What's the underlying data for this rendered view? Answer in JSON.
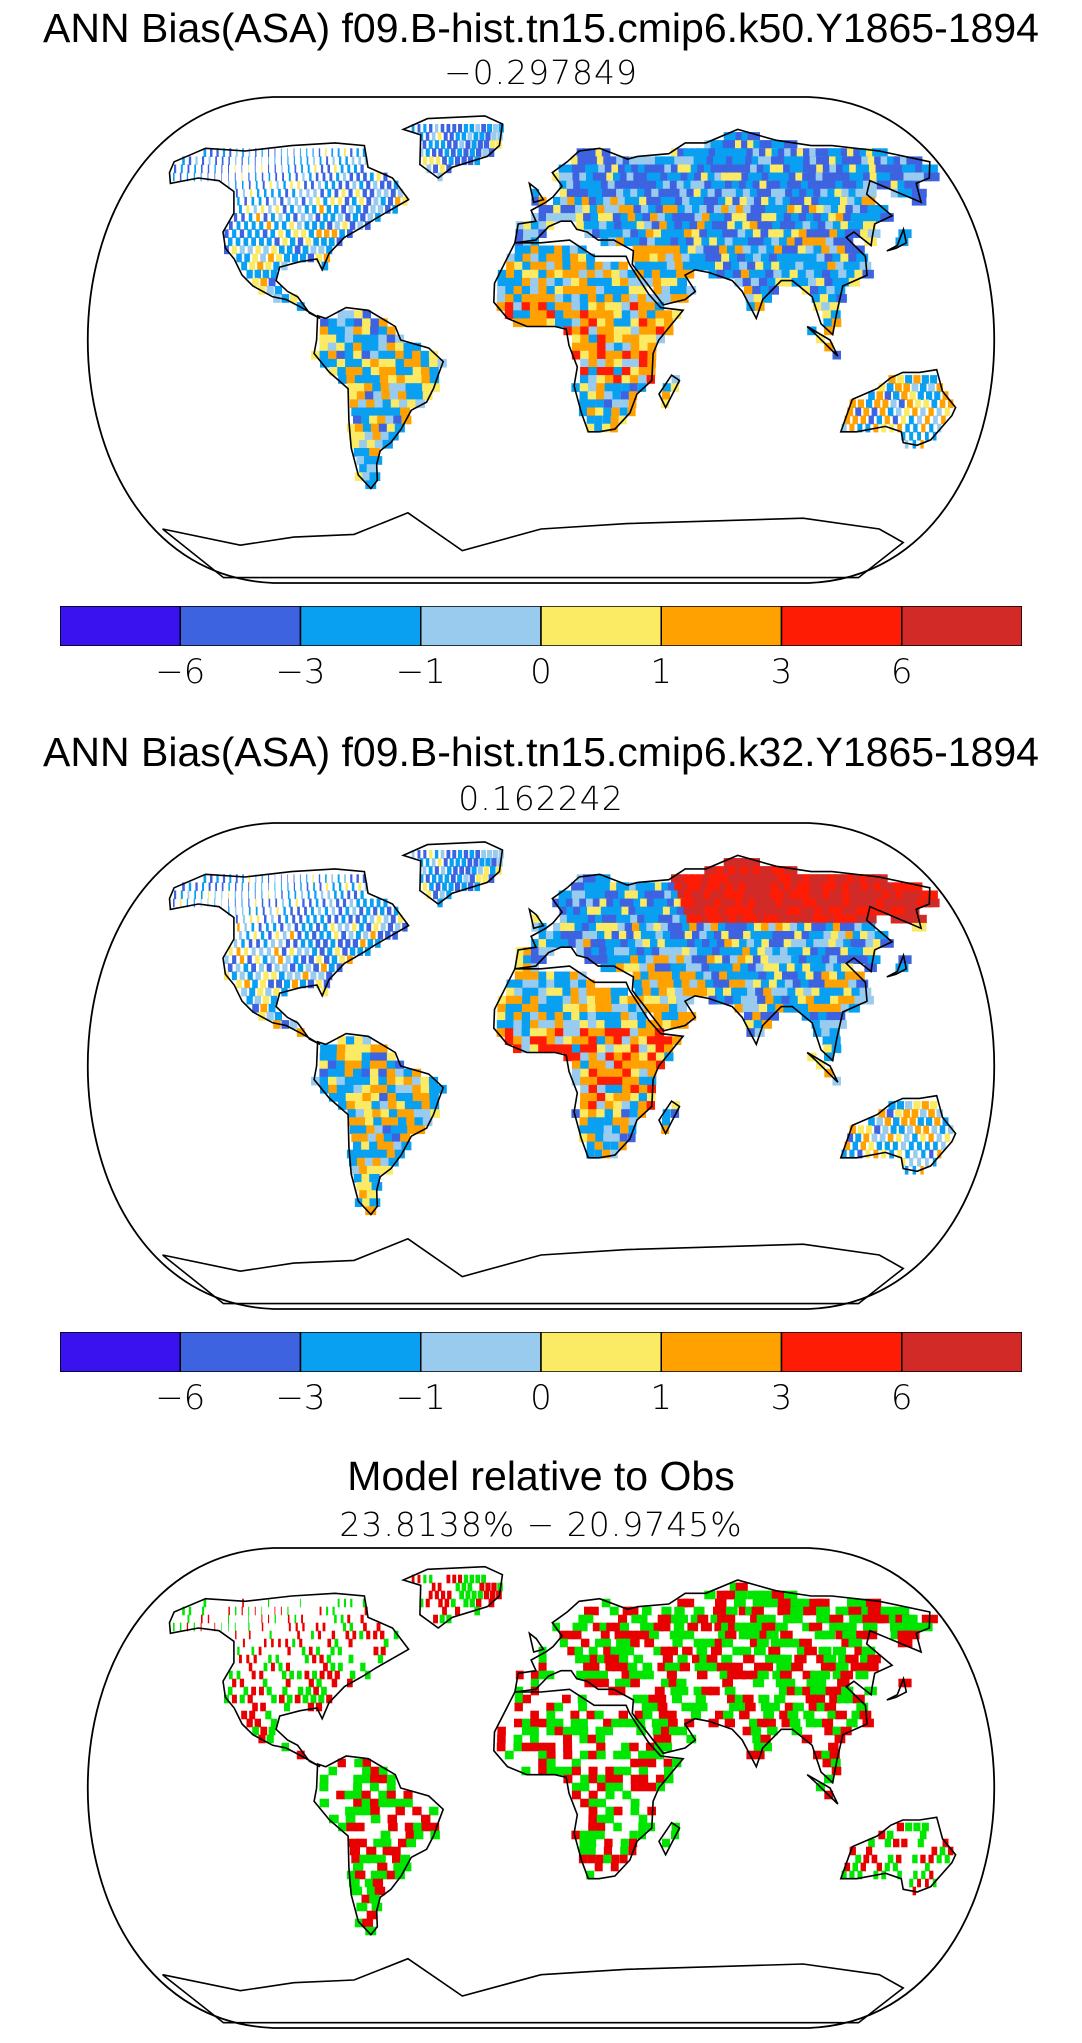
{
  "panels": [
    {
      "title": "ANN Bias(ASA) f09.B-hist.tn15.cmip6.k50.Y1865-1894",
      "subtitle": "−0.297849"
    },
    {
      "title": "ANN Bias(ASA) f09.B-hist.tn15.cmip6.k32.Y1865-1894",
      "subtitle": "0.162242"
    },
    {
      "title": "Model relative to Obs",
      "subtitle": "23.8138% − 20.9745%"
    }
  ],
  "colorbar": {
    "colors": [
      "#3a12f0",
      "#3d63e0",
      "#0aa0f2",
      "#99cbee",
      "#fbea63",
      "#ffa100",
      "#fe1c05",
      "#d22a27"
    ],
    "tick_labels": [
      "−6",
      "−3",
      "−1",
      "0",
      "1",
      "3",
      "6"
    ]
  },
  "comparison_colors": {
    "model_better": "#00e600",
    "model_worse": "#e80000"
  },
  "projection": "robinson"
}
